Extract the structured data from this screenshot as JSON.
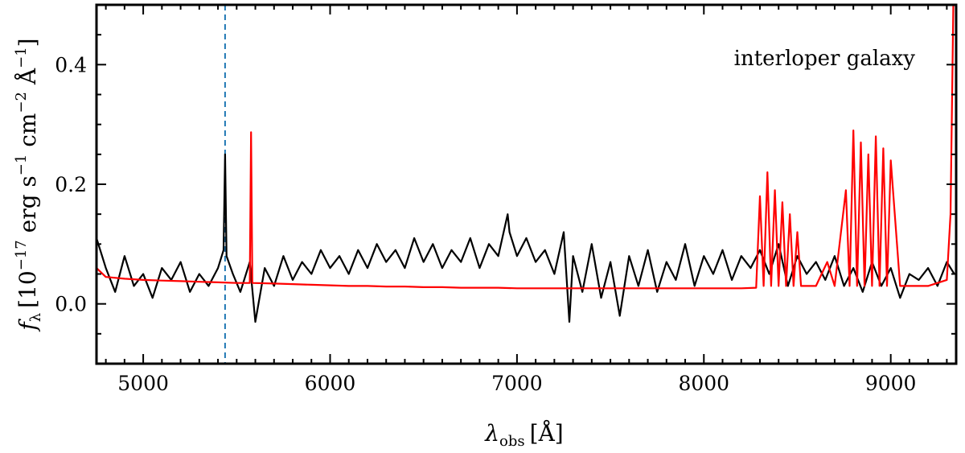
{
  "chart_data": {
    "type": "line",
    "annotation": "interloper galaxy",
    "xlabel": "λobs [Å]",
    "xlabel_parts": {
      "symbol": "λ",
      "subscript": "obs",
      "unit": "[Å]"
    },
    "ylabel": "fλ [10−17 erg s−1 cm−2 Å−1]",
    "ylabel_parts": {
      "symbol": "f",
      "subscript": "λ",
      "unit_open": "[10",
      "exp1": "−17",
      "erg": " erg s",
      "exp2": "−1",
      "cm": " cm",
      "exp3": "−2",
      "ang": " Å",
      "exp4": "−1",
      "unit_close": "]"
    },
    "xlim": [
      4750,
      9350
    ],
    "ylim": [
      -0.1,
      0.5
    ],
    "x_ticks": [
      5000,
      6000,
      7000,
      8000,
      9000
    ],
    "x_tick_labels": [
      "5000",
      "6000",
      "7000",
      "8000",
      "9000"
    ],
    "y_ticks": [
      0.0,
      0.2,
      0.4
    ],
    "y_tick_labels": [
      "0.0",
      "0.2",
      "0.4"
    ],
    "vline": {
      "x": 5438,
      "color": "#1f77b4",
      "style": "dashed"
    },
    "series": [
      {
        "color": "#000000",
        "x": [
          4750,
          4800,
          4850,
          4900,
          4950,
          5000,
          5050,
          5100,
          5150,
          5200,
          5250,
          5300,
          5350,
          5400,
          5430,
          5438,
          5446,
          5480,
          5520,
          5570,
          5600,
          5650,
          5700,
          5750,
          5800,
          5850,
          5900,
          5950,
          6000,
          6050,
          6100,
          6150,
          6200,
          6250,
          6300,
          6350,
          6400,
          6450,
          6500,
          6550,
          6600,
          6650,
          6700,
          6750,
          6800,
          6850,
          6900,
          6950,
          6960,
          7000,
          7050,
          7100,
          7150,
          7200,
          7250,
          7280,
          7300,
          7350,
          7400,
          7450,
          7500,
          7550,
          7600,
          7650,
          7700,
          7750,
          7800,
          7850,
          7900,
          7950,
          8000,
          8050,
          8100,
          8150,
          8200,
          8250,
          8300,
          8350,
          8400,
          8450,
          8500,
          8550,
          8600,
          8650,
          8700,
          8750,
          8800,
          8850,
          8900,
          8950,
          9000,
          9050,
          9100,
          9150,
          9200,
          9250,
          9300,
          9340
        ],
        "y": [
          0.11,
          0.06,
          0.02,
          0.08,
          0.03,
          0.05,
          0.01,
          0.06,
          0.04,
          0.07,
          0.02,
          0.05,
          0.03,
          0.06,
          0.09,
          0.25,
          0.08,
          0.05,
          0.02,
          0.07,
          -0.03,
          0.06,
          0.03,
          0.08,
          0.04,
          0.07,
          0.05,
          0.09,
          0.06,
          0.08,
          0.05,
          0.09,
          0.06,
          0.1,
          0.07,
          0.09,
          0.06,
          0.11,
          0.07,
          0.1,
          0.06,
          0.09,
          0.07,
          0.11,
          0.06,
          0.1,
          0.08,
          0.15,
          0.12,
          0.08,
          0.11,
          0.07,
          0.09,
          0.05,
          0.12,
          -0.03,
          0.08,
          0.02,
          0.1,
          0.01,
          0.07,
          -0.02,
          0.08,
          0.03,
          0.09,
          0.02,
          0.07,
          0.04,
          0.1,
          0.03,
          0.08,
          0.05,
          0.09,
          0.04,
          0.08,
          0.06,
          0.09,
          0.05,
          0.1,
          0.03,
          0.08,
          0.05,
          0.07,
          0.04,
          0.08,
          0.03,
          0.06,
          0.02,
          0.07,
          0.03,
          0.06,
          0.01,
          0.05,
          0.04,
          0.06,
          0.03,
          0.07,
          0.05
        ]
      },
      {
        "color": "#ff0000",
        "x": [
          4750,
          4800,
          4900,
          5000,
          5100,
          5200,
          5300,
          5400,
          5500,
          5570,
          5577,
          5584,
          5700,
          5800,
          5900,
          6000,
          6100,
          6200,
          6300,
          6400,
          6500,
          6600,
          6700,
          6800,
          6900,
          7000,
          7100,
          7200,
          7300,
          7340,
          7400,
          7500,
          7600,
          7700,
          7800,
          7900,
          8000,
          8100,
          8200,
          8280,
          8300,
          8320,
          8340,
          8360,
          8380,
          8400,
          8420,
          8440,
          8460,
          8480,
          8500,
          8520,
          8600,
          8660,
          8700,
          8760,
          8780,
          8800,
          8820,
          8840,
          8860,
          8880,
          8900,
          8920,
          8940,
          8960,
          8980,
          9000,
          9050,
          9100,
          9200,
          9300,
          9320,
          9335,
          9350
        ],
        "y": [
          0.06,
          0.045,
          0.042,
          0.04,
          0.039,
          0.038,
          0.037,
          0.036,
          0.035,
          0.035,
          0.287,
          0.035,
          0.034,
          0.033,
          0.032,
          0.031,
          0.03,
          0.03,
          0.029,
          0.029,
          0.028,
          0.028,
          0.027,
          0.027,
          0.027,
          0.026,
          0.026,
          0.026,
          0.026,
          0.026,
          0.026,
          0.026,
          0.026,
          0.026,
          0.026,
          0.026,
          0.026,
          0.026,
          0.026,
          0.027,
          0.18,
          0.03,
          0.22,
          0.03,
          0.19,
          0.03,
          0.17,
          0.03,
          0.15,
          0.03,
          0.12,
          0.03,
          0.03,
          0.07,
          0.03,
          0.19,
          0.03,
          0.29,
          0.03,
          0.27,
          0.03,
          0.25,
          0.03,
          0.28,
          0.03,
          0.26,
          0.03,
          0.24,
          0.03,
          0.03,
          0.03,
          0.04,
          0.15,
          0.5,
          0.5
        ]
      }
    ]
  }
}
